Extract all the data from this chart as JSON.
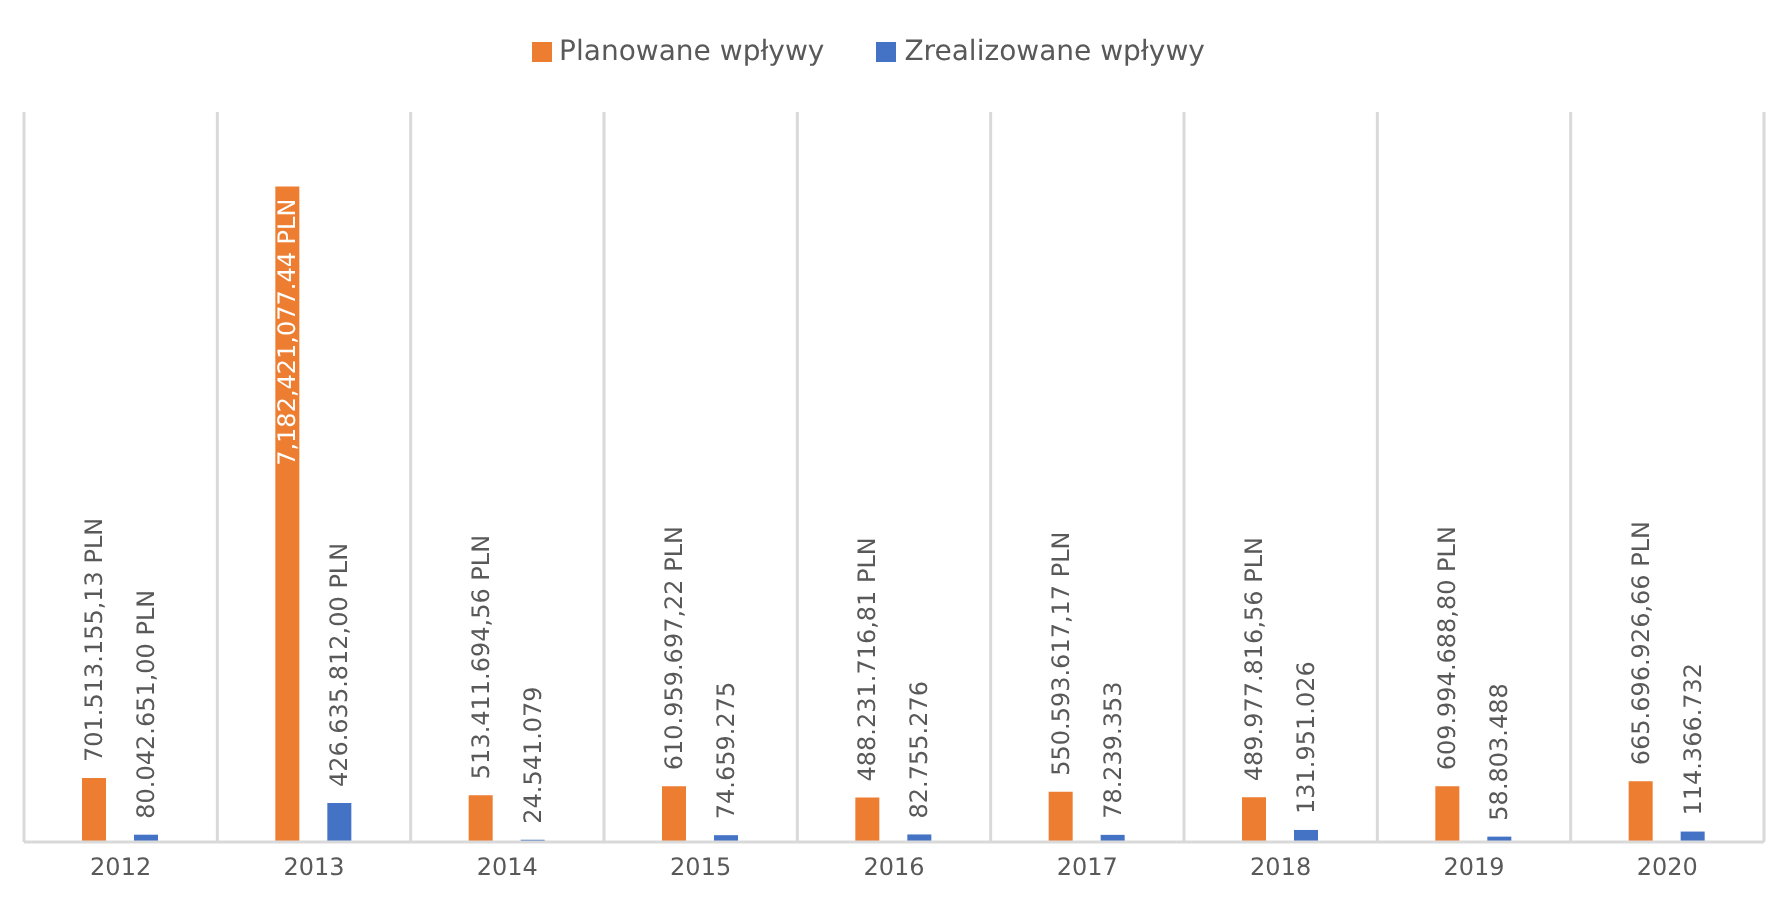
{
  "chart_data": {
    "type": "bar",
    "categories": [
      "2012",
      "2013",
      "2014",
      "2015",
      "2016",
      "2017",
      "2018",
      "2019",
      "2020"
    ],
    "series": [
      {
        "name": "Planowane wpływy",
        "color": "#ed7d31",
        "values": [
          701513155.13,
          7182421077.44,
          513411694.56,
          610959697.22,
          488231716.81,
          550593617.17,
          489977816.56,
          609994688.8,
          665696926.66
        ],
        "value_labels": [
          "701.513.155,13 PLN",
          "7,182,421,077.44 PLN",
          "513.411.694,56 PLN",
          "610.959.697,22 PLN",
          "488.231.716,81 PLN",
          "550.593.617,17 PLN",
          "489.977.816,56 PLN",
          "609.994.688,80 PLN",
          "665.696.926,66 PLN"
        ]
      },
      {
        "name": "Zrealizowane wpływy",
        "color": "#4472c4",
        "values": [
          80042651,
          426635812,
          24541079,
          74659275,
          82755276,
          78239353,
          131951026,
          58803488,
          114366732
        ],
        "value_labels": [
          "80.042.651,00 PLN",
          "426.635.812,00 PLN",
          "24.541.079",
          "74.659.275",
          "82.755.276",
          "78.239.353",
          "131.951.026",
          "58.803.488",
          "114.366.732"
        ]
      }
    ],
    "ylim": [
      0,
      8000000000
    ],
    "tick_labels": "x",
    "grid": "x",
    "legend": "top"
  }
}
